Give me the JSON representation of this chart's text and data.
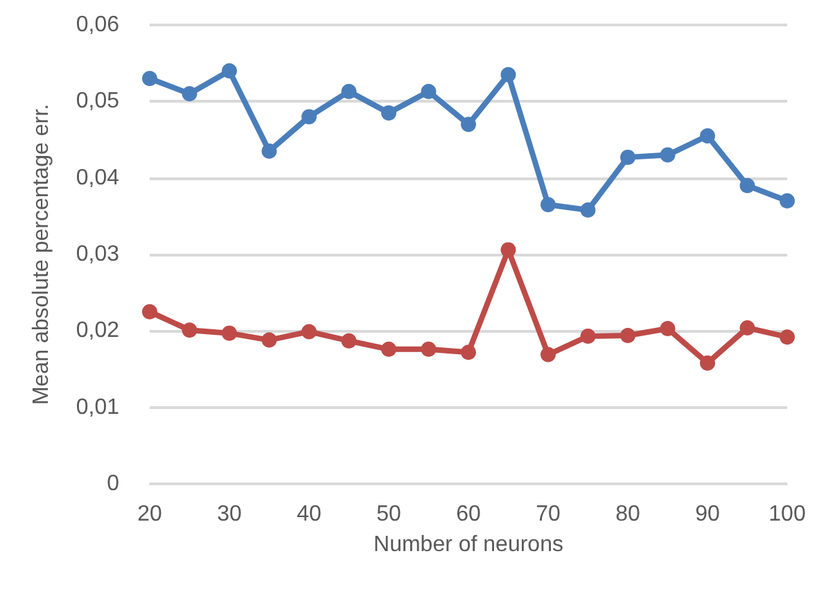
{
  "chart_data": {
    "type": "line",
    "xlabel": "Number of neurons",
    "ylabel": "Mean absolute percentage err.",
    "categories": [
      "20",
      null,
      "30",
      null,
      "40",
      null,
      "50",
      null,
      "60",
      null,
      "70",
      null,
      "80",
      null,
      "90",
      null,
      "100"
    ],
    "series": [
      {
        "color": "#4a7ebb",
        "values": [
          0.053,
          0.051,
          0.054,
          0.0435,
          0.048,
          0.0513,
          0.0485,
          0.0513,
          0.047,
          0.0535,
          0.0365,
          0.0358,
          0.0427,
          0.043,
          0.0455,
          0.039,
          0.037
        ]
      },
      {
        "color": "#be4b48",
        "values": [
          0.0225,
          0.0201,
          0.0197,
          0.0188,
          0.0199,
          0.0187,
          0.0176,
          0.0176,
          0.0172,
          0.0306,
          0.0169,
          0.0193,
          0.0194,
          0.0203,
          0.0158,
          0.0204,
          0.0192
        ]
      }
    ],
    "ylim": [
      0,
      0.06
    ],
    "yticks": [
      {
        "value": 0,
        "label": "0"
      },
      {
        "value": 0.01,
        "label": "0,01"
      },
      {
        "value": 0.02,
        "label": "0,02"
      },
      {
        "value": 0.03,
        "label": "0,03"
      },
      {
        "value": 0.04,
        "label": "0,04"
      },
      {
        "value": 0.05,
        "label": "0,05"
      },
      {
        "value": 0.06,
        "label": "0,06"
      }
    ],
    "grid": "y",
    "marker": "circle",
    "line_style": "solid"
  }
}
